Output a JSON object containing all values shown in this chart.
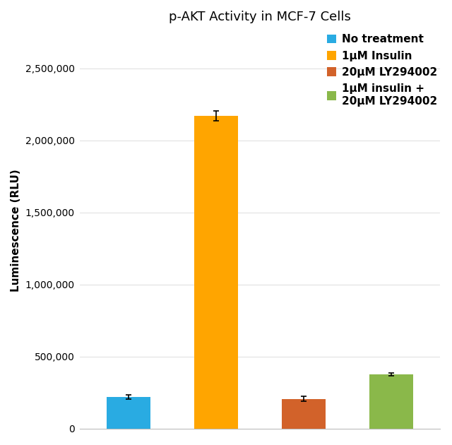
{
  "title": "p-AKT Activity in MCF-7 Cells",
  "ylabel": "Luminescence (RLU)",
  "categories": [
    "No treatment",
    "1μM Insulin",
    "20μM LY294002",
    "1μM insulin +\n20μM LY294002"
  ],
  "values": [
    220000,
    2170000,
    205000,
    375000
  ],
  "errors": [
    15000,
    35000,
    18000,
    12000
  ],
  "colors": [
    "#29abe2",
    "#ffa500",
    "#d2622a",
    "#8ab84a"
  ],
  "legend_labels": [
    "No treatment",
    "1μM Insulin",
    "20μM LY294002",
    "1μM insulin +\n20μM LY294002"
  ],
  "ylim": [
    0,
    2750000
  ],
  "yticks": [
    0,
    500000,
    1000000,
    1500000,
    2000000,
    2500000
  ],
  "title_fontsize": 13,
  "axis_fontsize": 11,
  "tick_fontsize": 10,
  "legend_fontsize": 11,
  "bar_width": 0.5,
  "figsize": [
    6.4,
    6.3
  ],
  "dpi": 100
}
